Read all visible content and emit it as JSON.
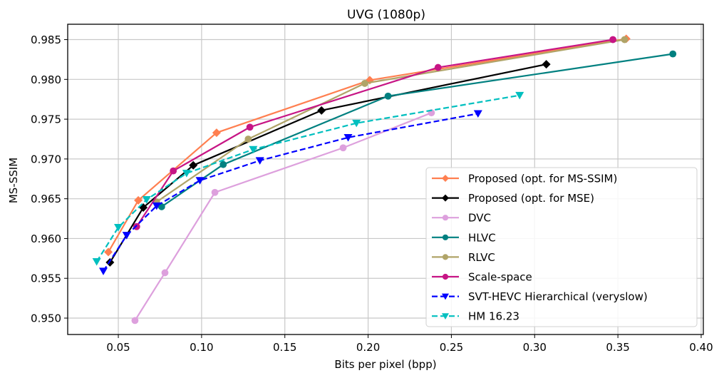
{
  "chart_data": {
    "type": "line",
    "title": "UVG (1080p)",
    "xlabel": "Bits per pixel (bpp)",
    "ylabel": "MS-SSIM",
    "xlim": [
      0.0196,
      0.4013
    ],
    "ylim": [
      0.94794,
      0.98693
    ],
    "xticks": [
      0.05,
      0.1,
      0.15,
      0.2,
      0.25,
      0.3,
      0.35,
      0.4
    ],
    "xtick_labels": [
      "0.05",
      "0.10",
      "0.15",
      "0.20",
      "0.25",
      "0.30",
      "0.35",
      "0.40"
    ],
    "yticks": [
      0.95,
      0.955,
      0.96,
      0.965,
      0.97,
      0.975,
      0.98,
      0.985
    ],
    "ytick_labels": [
      "0.950",
      "0.955",
      "0.960",
      "0.965",
      "0.970",
      "0.975",
      "0.980",
      "0.985"
    ],
    "grid": true,
    "legend_position": "lower-right",
    "series": [
      {
        "name": "Proposed (opt. for MS-SSIM)",
        "color": "#ff7f50",
        "marker": "diamond",
        "linestyle": "solid",
        "x": [
          0.044,
          0.062,
          0.109,
          0.201,
          0.355
        ],
        "y": [
          0.9583,
          0.9648,
          0.9733,
          0.9799,
          0.9851
        ]
      },
      {
        "name": "Proposed (opt. for MSE)",
        "color": "#000000",
        "marker": "diamond",
        "linestyle": "solid",
        "x": [
          0.045,
          0.065,
          0.095,
          0.172,
          0.307
        ],
        "y": [
          0.957,
          0.9639,
          0.9692,
          0.9761,
          0.9819
        ]
      },
      {
        "name": "DVC",
        "color": "#dda0dd",
        "marker": "circle",
        "linestyle": "solid",
        "x": [
          0.06,
          0.078,
          0.108,
          0.185,
          0.238
        ],
        "y": [
          0.9497,
          0.9557,
          0.9658,
          0.9714,
          0.9758
        ]
      },
      {
        "name": "HLVC",
        "color": "#008080",
        "marker": "circle",
        "linestyle": "solid",
        "x": [
          0.076,
          0.113,
          0.212,
          0.383
        ],
        "y": [
          0.964,
          0.9693,
          0.9779,
          0.9832
        ]
      },
      {
        "name": "RLVC",
        "color": "#b0a468",
        "marker": "circle",
        "linestyle": "solid",
        "x": [
          0.073,
          0.128,
          0.198,
          0.354
        ],
        "y": [
          0.9646,
          0.9725,
          0.9795,
          0.985
        ]
      },
      {
        "name": "Scale-space",
        "color": "#c71585",
        "marker": "circle",
        "linestyle": "solid",
        "x": [
          0.061,
          0.083,
          0.129,
          0.242,
          0.347
        ],
        "y": [
          0.9615,
          0.9685,
          0.974,
          0.9815,
          0.985
        ]
      },
      {
        "name": "SVT-HEVC Hierarchical (veryslow)",
        "color": "#0000ff",
        "marker": "triangle-down",
        "linestyle": "dashed",
        "x": [
          0.041,
          0.055,
          0.073,
          0.099,
          0.135,
          0.188,
          0.266
        ],
        "y": [
          0.9559,
          0.9604,
          0.9641,
          0.9673,
          0.9698,
          0.9727,
          0.9757
        ]
      },
      {
        "name": "HM 16.23",
        "color": "#00bfbf",
        "marker": "triangle-down",
        "linestyle": "dashed",
        "x": [
          0.037,
          0.05,
          0.067,
          0.091,
          0.131,
          0.193,
          0.291
        ],
        "y": [
          0.9571,
          0.9614,
          0.9649,
          0.9682,
          0.9712,
          0.9745,
          0.978
        ]
      }
    ]
  }
}
